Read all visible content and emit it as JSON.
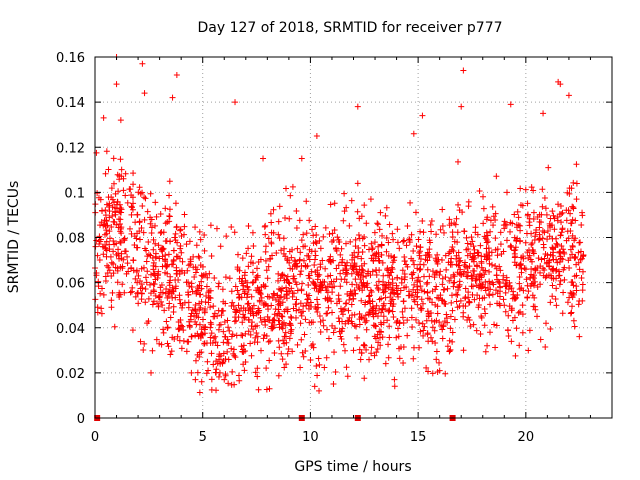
{
  "chart_data": {
    "type": "scatter",
    "title": "Day 127 of 2018, SRMTID for receiver p777",
    "xlabel": "GPS time / hours",
    "ylabel": "SRMTID / TECUs",
    "xlim": [
      0,
      24
    ],
    "ylim": [
      0,
      0.16
    ],
    "x_ticks": [
      0,
      5,
      10,
      15,
      20
    ],
    "x_tick_labels": [
      "0",
      "5",
      "10",
      "15",
      "20"
    ],
    "y_ticks": [
      0,
      0.02,
      0.04,
      0.06,
      0.08,
      0.1,
      0.12,
      0.14,
      0.16
    ],
    "y_tick_labels": [
      "0",
      "0.02",
      "0.04",
      "0.06",
      "0.08",
      "0.1",
      "0.12",
      "0.14",
      "0.16"
    ],
    "grid": true,
    "marker": "plus",
    "series_color": "#ff0000",
    "data_x_range": [
      0,
      22.7
    ],
    "trend": {
      "hours": [
        0,
        1,
        2,
        3,
        4,
        5,
        6,
        7,
        8,
        9,
        10,
        11,
        12,
        13,
        14,
        15,
        16,
        17,
        18,
        19,
        20,
        21,
        22,
        22.7
      ],
      "mean_tecu": [
        0.075,
        0.082,
        0.074,
        0.064,
        0.058,
        0.046,
        0.044,
        0.05,
        0.053,
        0.056,
        0.06,
        0.058,
        0.06,
        0.056,
        0.058,
        0.062,
        0.056,
        0.066,
        0.068,
        0.066,
        0.068,
        0.072,
        0.076,
        0.064
      ]
    },
    "sample_points": [
      {
        "x": 1.0,
        "y": 0.16
      },
      {
        "x": 2.2,
        "y": 0.157
      },
      {
        "x": 17.1,
        "y": 0.154
      },
      {
        "x": 3.8,
        "y": 0.152
      },
      {
        "x": 21.5,
        "y": 0.149
      },
      {
        "x": 21.6,
        "y": 0.148
      },
      {
        "x": 1.0,
        "y": 0.148
      },
      {
        "x": 2.3,
        "y": 0.144
      },
      {
        "x": 22.0,
        "y": 0.143
      },
      {
        "x": 3.6,
        "y": 0.142
      },
      {
        "x": 6.5,
        "y": 0.14
      },
      {
        "x": 12.2,
        "y": 0.138
      },
      {
        "x": 19.3,
        "y": 0.139
      },
      {
        "x": 17.0,
        "y": 0.138
      },
      {
        "x": 0.4,
        "y": 0.133
      },
      {
        "x": 1.2,
        "y": 0.132
      },
      {
        "x": 15.2,
        "y": 0.134
      },
      {
        "x": 20.8,
        "y": 0.135
      },
      {
        "x": 10.3,
        "y": 0.125
      },
      {
        "x": 14.8,
        "y": 0.126
      },
      {
        "x": 9.6,
        "y": 0.115
      },
      {
        "x": 7.8,
        "y": 0.115
      },
      {
        "x": 12.2,
        "y": 0.104
      },
      {
        "x": 12.0,
        "y": 0.03
      },
      {
        "x": 6.0,
        "y": 0.017
      },
      {
        "x": 5.8,
        "y": 0.02
      },
      {
        "x": 2.6,
        "y": 0.02
      },
      {
        "x": 10.2,
        "y": 0.014
      },
      {
        "x": 10.4,
        "y": 0.012
      },
      {
        "x": 13.9,
        "y": 0.017
      },
      {
        "x": 16.0,
        "y": 0.021
      },
      {
        "x": 18.2,
        "y": 0.032
      }
    ],
    "zero_flags_x": [
      0.1,
      9.6,
      12.2,
      16.6
    ],
    "n_points": 2300
  }
}
